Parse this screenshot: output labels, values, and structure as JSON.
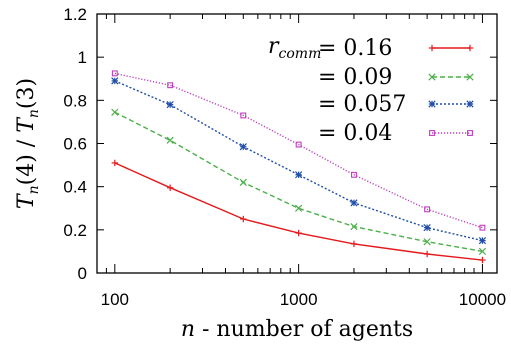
{
  "chart_data": {
    "type": "line",
    "xscale": "log",
    "xlim": [
      80,
      12000
    ],
    "ylim": [
      0,
      1.2
    ],
    "xticks": [
      100,
      1000,
      10000
    ],
    "xtick_labels": [
      "100",
      "1000",
      "10000"
    ],
    "yticks": [
      0,
      0.2,
      0.4,
      0.6,
      0.8,
      1,
      1.2
    ],
    "ytick_labels": [
      "0",
      "0.2",
      "0.4",
      "0.6",
      "0.8",
      "1",
      "1.2"
    ],
    "xlabel": {
      "var": "n",
      "text": " - number of agents"
    },
    "ylabel": {
      "var1": "T",
      "sub1": "n",
      "arg1": "(4)",
      "sep": " / ",
      "var2": "T",
      "sub2": "n",
      "arg2": "(3)"
    },
    "legend_title": {
      "var": "r",
      "sub": "comm"
    },
    "legend_position": "top-right",
    "grid": false,
    "x": [
      100,
      200,
      500,
      1000,
      2000,
      5000,
      10000
    ],
    "series": [
      {
        "name": "= 0.16",
        "color": "#e41a1c",
        "dash": "solid",
        "marker": "plus",
        "values": [
          0.51,
          0.395,
          0.25,
          0.185,
          0.135,
          0.088,
          0.06
        ]
      },
      {
        "name": "= 0.09",
        "color": "#4daf4a",
        "dash": "dashed",
        "marker": "x",
        "values": [
          0.745,
          0.615,
          0.42,
          0.3,
          0.215,
          0.145,
          0.1
        ]
      },
      {
        "name": "= 0.057",
        "color": "#1f4ea8",
        "dash": "dotted",
        "marker": "star",
        "values": [
          0.89,
          0.78,
          0.585,
          0.455,
          0.325,
          0.21,
          0.15
        ]
      },
      {
        "name": "= 0.04",
        "color": "#c03dc0",
        "dash": "dotted-fine",
        "marker": "square",
        "values": [
          0.925,
          0.87,
          0.73,
          0.595,
          0.455,
          0.295,
          0.21
        ]
      }
    ]
  }
}
